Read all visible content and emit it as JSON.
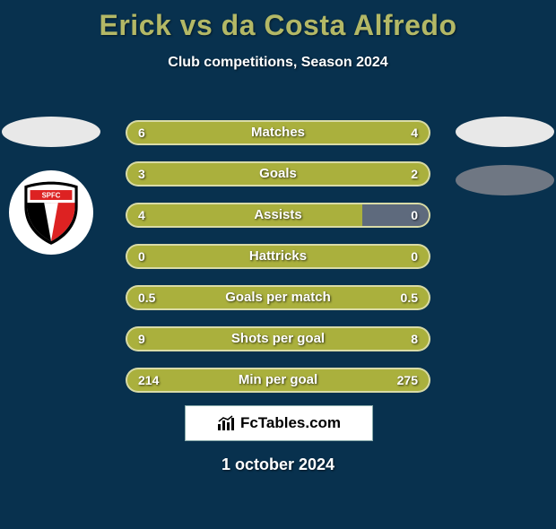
{
  "title": "Erick vs da Costa Alfredo",
  "subtitle": "Club competitions, Season 2024",
  "colors": {
    "background": "#08314e",
    "title_color": "#b3b866",
    "text_color": "#ffffff",
    "bar_fill": "#aab03d",
    "bar_empty": "#5e6a7d",
    "bar_border": "rgba(255,255,255,0.55)"
  },
  "left_icons": [
    {
      "type": "ellipse",
      "color": "#e8e8e8"
    },
    {
      "type": "spfc_logo"
    }
  ],
  "right_icons": [
    {
      "type": "ellipse",
      "color": "#e8e8e8"
    },
    {
      "type": "ellipse",
      "color": "#6f7783"
    }
  ],
  "bars": [
    {
      "label": "Matches",
      "left": "6",
      "right": "4",
      "fill_pct": 100
    },
    {
      "label": "Goals",
      "left": "3",
      "right": "2",
      "fill_pct": 100
    },
    {
      "label": "Assists",
      "left": "4",
      "right": "0",
      "fill_pct": 78
    },
    {
      "label": "Hattricks",
      "left": "0",
      "right": "0",
      "fill_pct": 100
    },
    {
      "label": "Goals per match",
      "left": "0.5",
      "right": "0.5",
      "fill_pct": 100
    },
    {
      "label": "Shots per goal",
      "left": "9",
      "right": "8",
      "fill_pct": 100
    },
    {
      "label": "Min per goal",
      "left": "214",
      "right": "275",
      "fill_pct": 100
    }
  ],
  "footer_brand": "FcTables.com",
  "footer_date": "1 october 2024",
  "typography": {
    "title_fontsize": 32,
    "subtitle_fontsize": 16,
    "bar_label_fontsize": 15,
    "bar_value_fontsize": 14,
    "footer_date_fontsize": 18
  }
}
